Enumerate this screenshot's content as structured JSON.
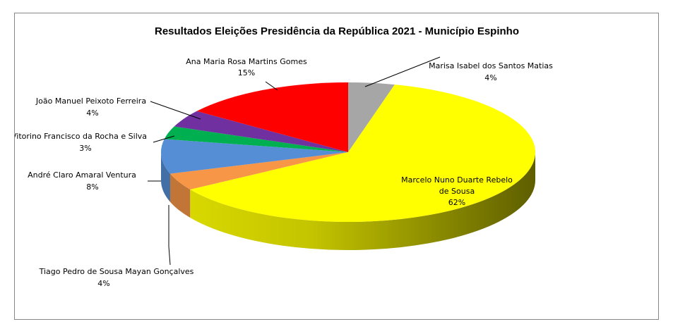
{
  "chart_data": {
    "type": "pie",
    "title": "Resultados Eleições Presidência da República 2021 - Município Espinho",
    "categories": [
      "Marisa Isabel dos Santos Matias",
      "Marcelo Nuno Duarte Rebelo de Sousa",
      "Tiago Pedro de Sousa Mayan Gonçalves",
      "André Claro Amaral Ventura",
      "Vitorino Francisco da Rocha e Silva",
      "João Manuel Peixoto Ferreira",
      "Ana Maria Rosa Martins Gomes"
    ],
    "values": [
      4,
      62,
      4,
      8,
      3,
      4,
      15
    ],
    "value_labels": [
      "4%",
      "62%",
      "4%",
      "8%",
      "3%",
      "4%",
      "15%"
    ],
    "colors": [
      "#a6a6a6",
      "#ffff00",
      "#f79646",
      "#558ed5",
      "#00b050",
      "#7030a0",
      "#ff0000"
    ],
    "style": "3d",
    "legend": "none"
  }
}
